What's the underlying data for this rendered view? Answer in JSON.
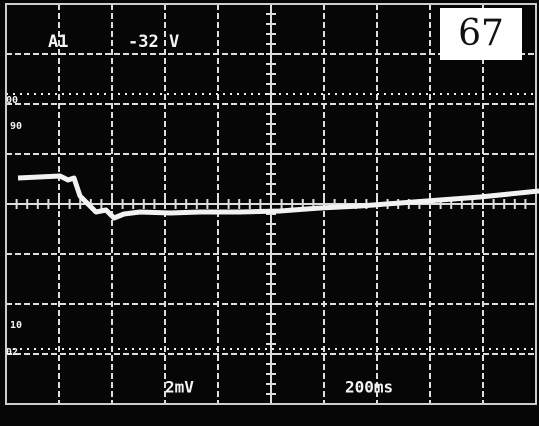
{
  "channel": "A1",
  "offset": "-32 V",
  "page_number": "67",
  "markers": [
    "00",
    "90",
    "10",
    "02"
  ],
  "scale": "2mV",
  "timebase": "200ms"
}
